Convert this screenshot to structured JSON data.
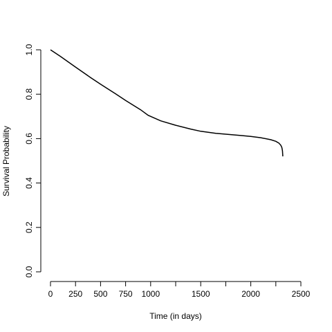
{
  "chart_data": {
    "type": "line",
    "title": "",
    "xlabel": "Time (in days)",
    "ylabel": "Survival Probability",
    "xlim": [
      0,
      2500
    ],
    "ylim": [
      0,
      1
    ],
    "grid": false,
    "x_ticks": [
      {
        "value": 0,
        "label": "0"
      },
      {
        "value": 250,
        "label": "250"
      },
      {
        "value": 500,
        "label": "500"
      },
      {
        "value": 750,
        "label": "750"
      },
      {
        "value": 1000,
        "label": "1000"
      },
      {
        "value": 1250,
        "label": ""
      },
      {
        "value": 1500,
        "label": "1500"
      },
      {
        "value": 1750,
        "label": ""
      },
      {
        "value": 2000,
        "label": "2000"
      },
      {
        "value": 2250,
        "label": ""
      },
      {
        "value": 2500,
        "label": "2500"
      }
    ],
    "y_ticks": [
      {
        "value": 0.0,
        "label": "0.0"
      },
      {
        "value": 0.2,
        "label": "0.2"
      },
      {
        "value": 0.4,
        "label": "0.4"
      },
      {
        "value": 0.6,
        "label": "0.6"
      },
      {
        "value": 0.8,
        "label": "0.8"
      },
      {
        "value": 1.0,
        "label": "1.0"
      }
    ],
    "series": [
      {
        "color": "#000000",
        "x": [
          0,
          100,
          250,
          400,
          500,
          650,
          750,
          900,
          975,
          1100,
          1250,
          1400,
          1500,
          1650,
          1750,
          1900,
          2000,
          2100,
          2200,
          2250,
          2280,
          2300,
          2310,
          2316,
          2320
        ],
        "y": [
          1.0,
          0.97,
          0.922,
          0.875,
          0.845,
          0.802,
          0.772,
          0.73,
          0.705,
          0.68,
          0.66,
          0.643,
          0.633,
          0.624,
          0.62,
          0.614,
          0.61,
          0.604,
          0.595,
          0.588,
          0.58,
          0.57,
          0.56,
          0.545,
          0.52
        ]
      }
    ]
  }
}
